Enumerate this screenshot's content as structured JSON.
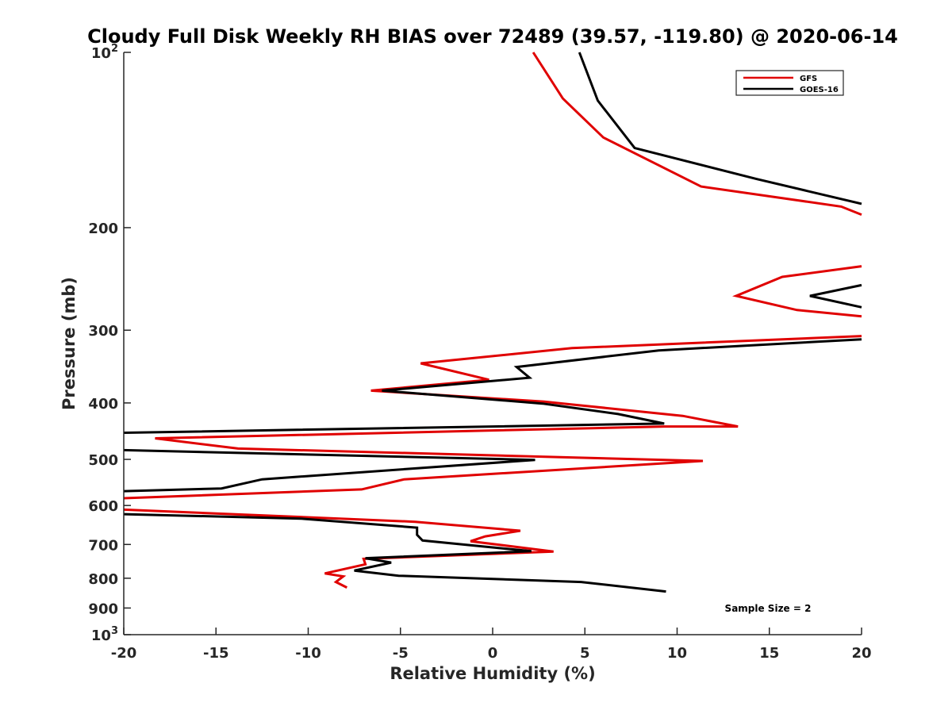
{
  "chart_data": {
    "type": "line",
    "title": "Cloudy Full Disk Weekly RH BIAS over 72489 (39.57, -119.80) @ 2020-06-14",
    "xlabel": "Relative Humidity (%)",
    "ylabel": "Pressure (mb)",
    "xlim": [
      -20,
      20
    ],
    "ylim": [
      100,
      1000
    ],
    "y_scale": "log",
    "y_reversed": true,
    "grid": false,
    "x_ticks": [
      "-20",
      "-15",
      "-10",
      "-5",
      "0",
      "5",
      "10",
      "15",
      "20"
    ],
    "y_ticks": [
      {
        "value": 100,
        "base": "10",
        "exp": "2"
      },
      {
        "value": 200,
        "label": "200"
      },
      {
        "value": 300,
        "label": "300"
      },
      {
        "value": 400,
        "label": "400"
      },
      {
        "value": 500,
        "label": "500"
      },
      {
        "value": 600,
        "label": "600"
      },
      {
        "value": 700,
        "label": "700"
      },
      {
        "value": 800,
        "label": "800"
      },
      {
        "value": 900,
        "label": "900"
      },
      {
        "value": 1000,
        "base": "10",
        "exp": "3"
      }
    ],
    "legend_position": "top-right",
    "annotation": "Sample Size = 2",
    "series": [
      {
        "name": "GFS",
        "color": "#e00000",
        "points": [
          [
            2.2,
            100
          ],
          [
            3.8,
            120
          ],
          [
            6.0,
            140
          ],
          [
            11.3,
            170
          ],
          [
            18.9,
            184
          ],
          [
            20.0,
            190
          ],
          [
            null,
            null
          ],
          [
            20.0,
            233
          ],
          [
            15.7,
            243
          ],
          [
            13.2,
            262
          ],
          [
            16.5,
            277
          ],
          [
            20.0,
            284
          ],
          [
            null,
            null
          ],
          [
            20.0,
            307
          ],
          [
            4.3,
            322
          ],
          [
            -3.9,
            342
          ],
          [
            -0.2,
            365
          ],
          [
            -6.6,
            381
          ],
          [
            2.8,
            398
          ],
          [
            10.3,
            421
          ],
          [
            13.3,
            439
          ],
          [
            9.3,
            439
          ],
          [
            -18.3,
            460
          ],
          [
            -13.8,
            479
          ],
          [
            11.4,
            503
          ],
          [
            -4.8,
            541
          ],
          [
            -7.1,
            563
          ],
          [
            -20.0,
            583
          ],
          [
            null,
            null
          ],
          [
            -20.0,
            610
          ],
          [
            -4.2,
            640
          ],
          [
            1.5,
            663
          ],
          [
            -0.4,
            678
          ],
          [
            -1.2,
            691
          ],
          [
            3.3,
            720
          ],
          [
            -7.0,
            741
          ],
          [
            -6.9,
            757
          ],
          [
            -9.1,
            785
          ],
          [
            -8.1,
            794
          ],
          [
            -8.5,
            812
          ],
          [
            -7.9,
            830
          ]
        ]
      },
      {
        "name": "GOES-16",
        "color": "#000000",
        "points": [
          [
            4.7,
            100
          ],
          [
            5.7,
            121
          ],
          [
            7.7,
            146
          ],
          [
            14.3,
            165
          ],
          [
            20.0,
            182
          ],
          [
            null,
            null
          ],
          [
            20.0,
            251
          ],
          [
            17.2,
            262
          ],
          [
            20.0,
            274
          ],
          [
            null,
            null
          ],
          [
            20.0,
            311
          ],
          [
            9.0,
            325
          ],
          [
            1.3,
            347
          ],
          [
            2.0,
            362
          ],
          [
            -6.0,
            381
          ],
          [
            2.7,
            401
          ],
          [
            6.8,
            418
          ],
          [
            9.3,
            434
          ],
          [
            -20.0,
            450
          ],
          [
            null,
            null
          ],
          [
            -20.0,
            482
          ],
          [
            2.3,
            501
          ],
          [
            -12.5,
            541
          ],
          [
            -14.7,
            561
          ],
          [
            -20.0,
            567
          ],
          [
            null,
            null
          ],
          [
            -20.0,
            621
          ],
          [
            -10.4,
            632
          ],
          [
            -4.1,
            655
          ],
          [
            -4.1,
            674
          ],
          [
            -3.8,
            689
          ],
          [
            2.1,
            719
          ],
          [
            -6.9,
            739
          ],
          [
            -5.5,
            752
          ],
          [
            -7.5,
            776
          ],
          [
            -5.1,
            792
          ],
          [
            4.8,
            812
          ],
          [
            9.4,
            843
          ]
        ]
      }
    ]
  }
}
